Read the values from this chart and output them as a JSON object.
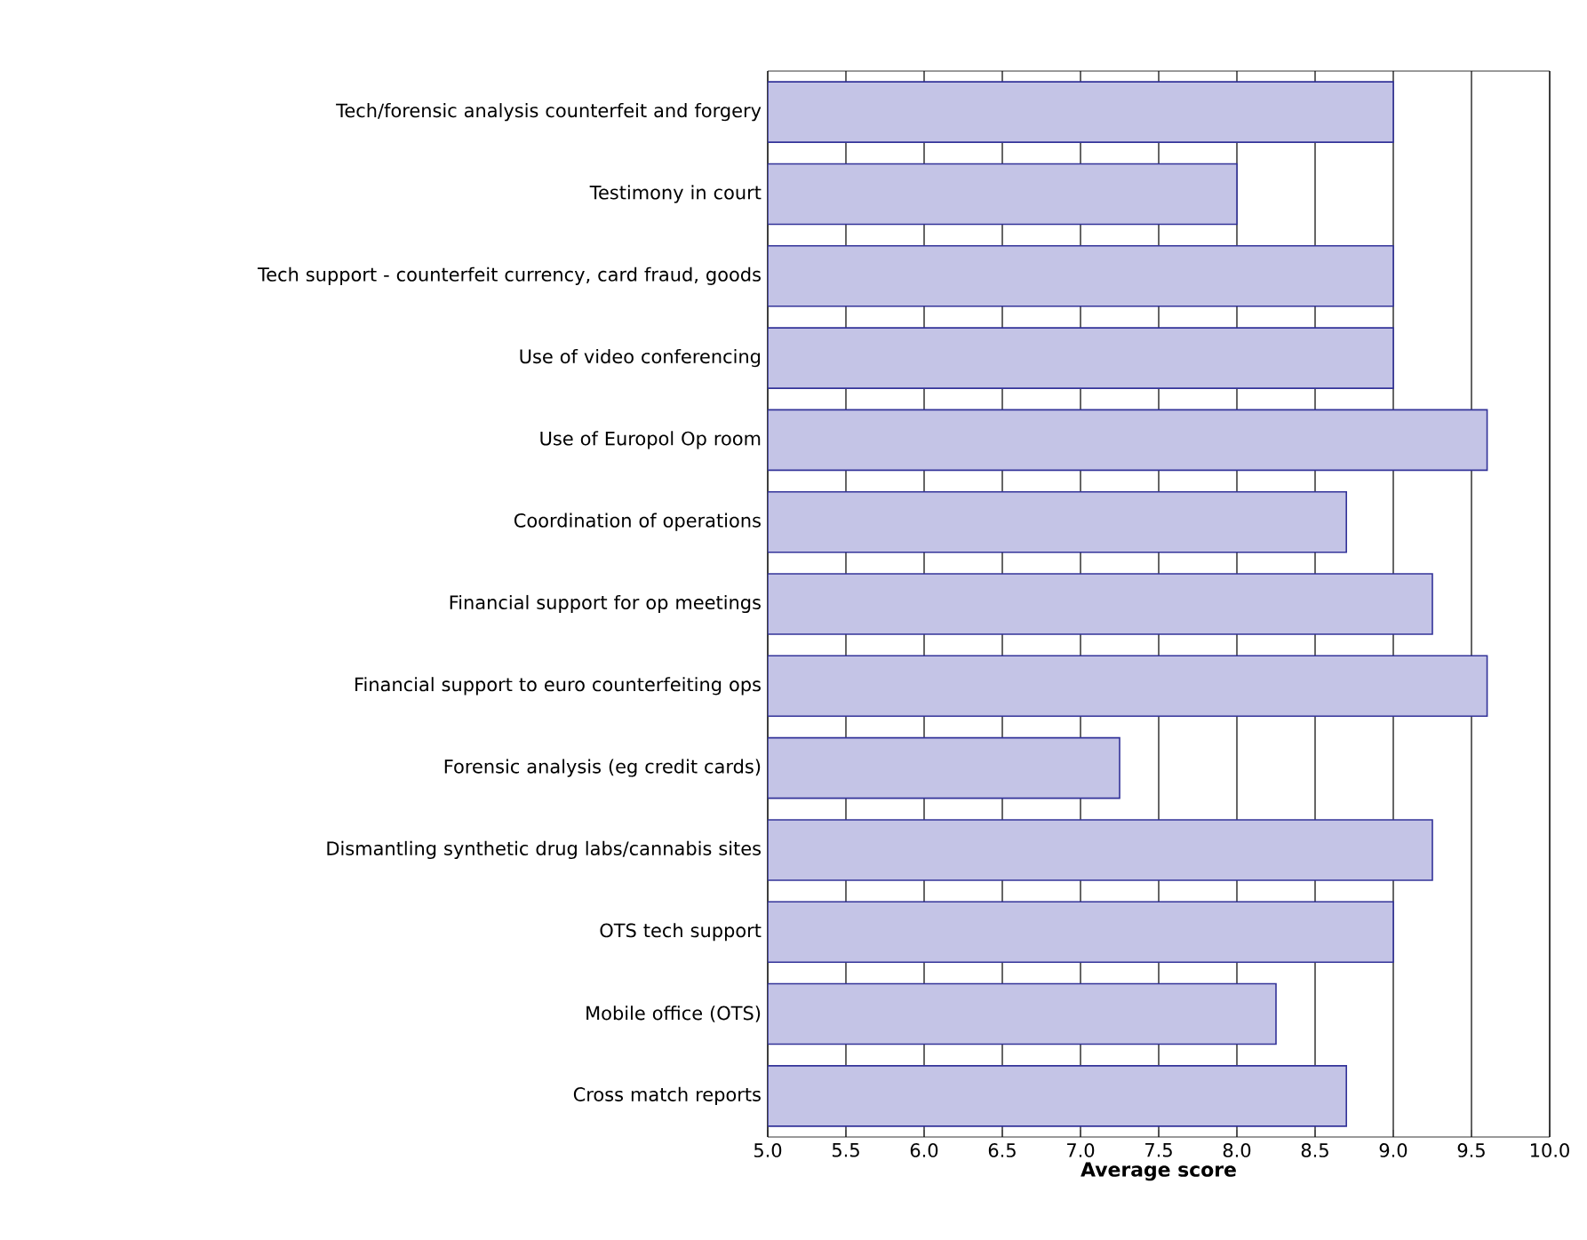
{
  "chart_data": {
    "type": "bar",
    "orientation": "horizontal",
    "xlabel": "Average score",
    "categories": [
      "Tech/forensic analysis counterfeit and forgery",
      "Testimony in court",
      "Tech support - counterfeit currency, card fraud, goods",
      "Use of video conferencing",
      "Use of Europol Op room",
      "Coordination of operations",
      "Financial support for op meetings",
      "Financial support to euro counterfeiting ops",
      "Forensic analysis (eg credit cards)",
      "Dismantling synthetic drug labs/cannabis sites",
      "OTS tech support",
      "Mobile office (OTS)",
      "Cross match reports"
    ],
    "values": [
      9.0,
      8.0,
      9.0,
      9.0,
      9.6,
      8.7,
      9.25,
      9.6,
      7.25,
      9.25,
      9.0,
      8.25,
      8.7
    ],
    "color": "#c4c4e6",
    "xlim": [
      5,
      10
    ],
    "xticks": [
      {
        "value": 5,
        "label": "5.0"
      },
      {
        "value": 5.5,
        "label": "5.5"
      },
      {
        "value": 6,
        "label": "6.0"
      },
      {
        "value": 6.5,
        "label": "6.5"
      },
      {
        "value": 7,
        "label": "7.0"
      },
      {
        "value": 7.5,
        "label": "7.5"
      },
      {
        "value": 8,
        "label": "8.0"
      },
      {
        "value": 8.5,
        "label": "8.5"
      },
      {
        "value": 9,
        "label": "9.0"
      },
      {
        "value": 9.5,
        "label": "9.5"
      },
      {
        "value": 10,
        "label": "10.0"
      }
    ],
    "grid": "x"
  }
}
